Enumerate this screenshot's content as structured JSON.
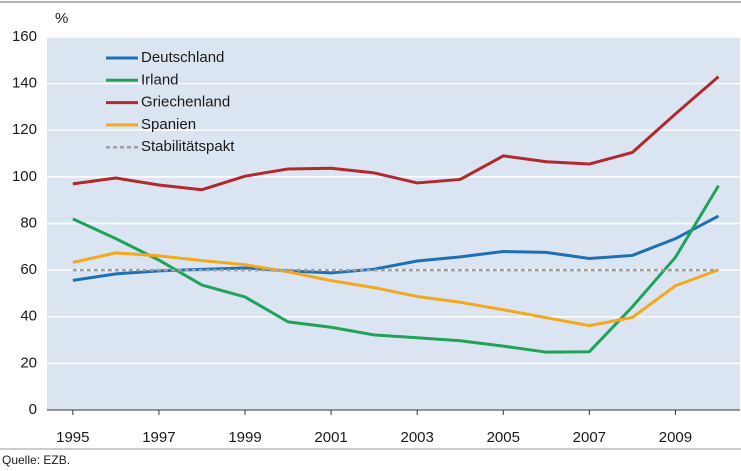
{
  "chart_data": {
    "type": "line",
    "unit_label": "%",
    "source": "Quelle: EZB.",
    "x": [
      1995,
      1996,
      1997,
      1998,
      1999,
      2000,
      2001,
      2002,
      2003,
      2004,
      2005,
      2006,
      2007,
      2008,
      2009,
      2010
    ],
    "xlim": [
      1994.4,
      2010.5
    ],
    "xticks": [
      1995,
      1997,
      1999,
      2001,
      2003,
      2005,
      2007,
      2009
    ],
    "ylim": [
      0,
      160
    ],
    "yticks": [
      0,
      20,
      40,
      60,
      80,
      100,
      120,
      140,
      160
    ],
    "grid": true,
    "legend": "upper-left",
    "series": [
      {
        "name": "Deutschland",
        "color": "#1f6fb5",
        "values": [
          55.6,
          58.4,
          59.7,
          60.3,
          60.9,
          59.7,
          58.8,
          60.4,
          63.9,
          65.7,
          68.0,
          67.6,
          65.0,
          66.3,
          73.5,
          83.2
        ]
      },
      {
        "name": "Irland",
        "color": "#1fa35a",
        "values": [
          82.0,
          73.5,
          64.3,
          53.6,
          48.5,
          37.8,
          35.5,
          32.2,
          31.0,
          29.7,
          27.4,
          24.8,
          25.0,
          44.3,
          65.5,
          96.2
        ]
      },
      {
        "name": "Griechenland",
        "color": "#b3282e",
        "values": [
          97.0,
          99.5,
          96.5,
          94.5,
          100.3,
          103.4,
          103.7,
          101.7,
          97.4,
          98.9,
          109.0,
          106.5,
          105.5,
          110.5,
          127.0,
          143.0
        ]
      },
      {
        "name": "Spanien",
        "color": "#f4a81d",
        "values": [
          63.3,
          67.4,
          66.1,
          64.1,
          62.3,
          59.3,
          55.5,
          52.5,
          48.7,
          46.2,
          43.0,
          39.6,
          36.2,
          39.7,
          53.3,
          60.1
        ]
      },
      {
        "name": "Stabilitätspakt",
        "color": "#a0a0a0",
        "dashed": true,
        "values": [
          60,
          60,
          60,
          60,
          60,
          60,
          60,
          60,
          60,
          60,
          60,
          60,
          60,
          60,
          60,
          60
        ]
      }
    ]
  }
}
